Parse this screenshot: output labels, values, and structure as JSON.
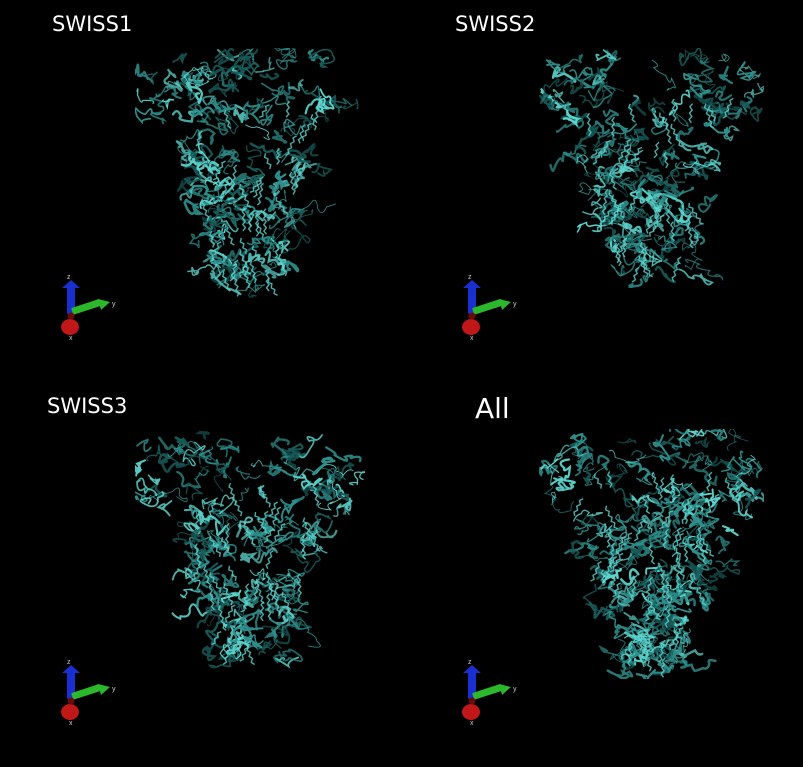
{
  "panels": [
    {
      "title": "SWISS1",
      "variant": 0
    },
    {
      "title": "SWISS2",
      "variant": 1
    },
    {
      "title": "SWISS3",
      "variant": 2
    },
    {
      "title": "All",
      "variant": 3
    }
  ],
  "axes": {
    "z_label": "z",
    "y_label": "y",
    "x_label": "x"
  },
  "colors": {
    "background": "#000000",
    "ribbon": "#2e8f8c",
    "ribbon_highlight": "#5ed6cf",
    "ribbon_shadow": "#175a58",
    "axis_z": "#1a2fd0",
    "axis_y": "#2bb82b",
    "axis_x": "#c01818",
    "title": "#ffffff"
  }
}
